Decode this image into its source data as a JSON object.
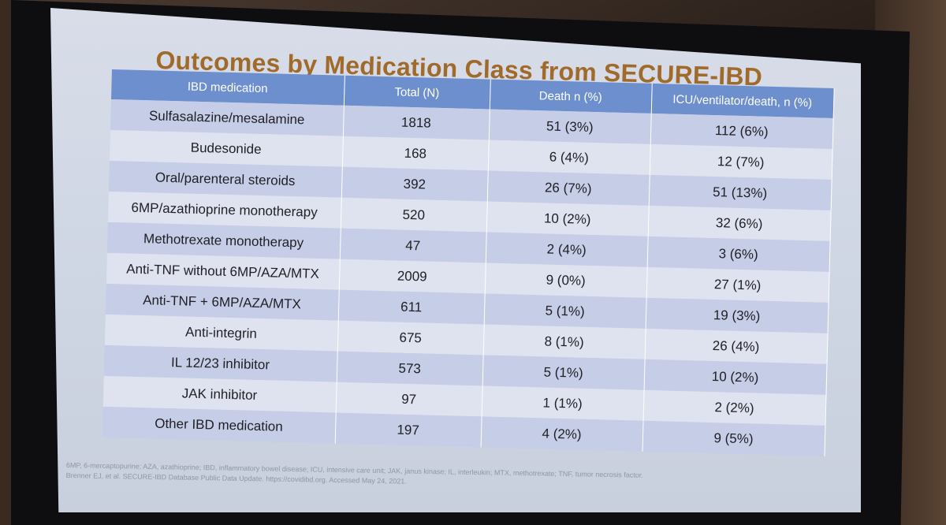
{
  "slide": {
    "title": "Outcomes by Medication Class from SECURE-IBD"
  },
  "table": {
    "headers": [
      "IBD medication",
      "Total (N)",
      "Death n (%)",
      "ICU/ventilator/death, n (%)"
    ],
    "rows": [
      {
        "medication": "Sulfasalazine/mesalamine",
        "total": "1818",
        "death": "51 (3%)",
        "icu": "112 (6%)"
      },
      {
        "medication": "Budesonide",
        "total": "168",
        "death": "6 (4%)",
        "icu": "12 (7%)"
      },
      {
        "medication": "Oral/parenteral steroids",
        "total": "392",
        "death": "26 (7%)",
        "icu": "51 (13%)"
      },
      {
        "medication": "6MP/azathioprine monotherapy",
        "total": "520",
        "death": "10 (2%)",
        "icu": "32 (6%)"
      },
      {
        "medication": "Methotrexate monotherapy",
        "total": "47",
        "death": "2 (4%)",
        "icu": "3 (6%)"
      },
      {
        "medication": "Anti-TNF without 6MP/AZA/MTX",
        "total": "2009",
        "death": "9 (0%)",
        "icu": "27 (1%)"
      },
      {
        "medication": "Anti-TNF + 6MP/AZA/MTX",
        "total": "611",
        "death": "5 (1%)",
        "icu": "19 (3%)"
      },
      {
        "medication": "Anti-integrin",
        "total": "675",
        "death": "8 (1%)",
        "icu": "26 (4%)"
      },
      {
        "medication": "IL 12/23 inhibitor",
        "total": "573",
        "death": "5 (1%)",
        "icu": "10 (2%)"
      },
      {
        "medication": "JAK inhibitor",
        "total": "97",
        "death": "1 (1%)",
        "icu": "2 (2%)"
      },
      {
        "medication": "Other IBD medication",
        "total": "197",
        "death": "4 (2%)",
        "icu": "9 (5%)"
      }
    ]
  },
  "footnote": {
    "abbreviations": "6MP, 6-mercaptopurine; AZA, azathioprine; IBD, inflammatory bowel disease; ICU, intensive care unit; JAK, janus kinase; IL, interleukin; MTX, methotrexate; TNF, tumor necrosis factor.",
    "reference": "Brenner EJ, et al. SECURE-IBD Database Public Data Update. https://covidibd.org. Accessed May 24, 2021."
  },
  "colors": {
    "title": "#a06a2a",
    "header_bg": "#6d8fce",
    "row_dark": "#c6cde6",
    "row_light": "#dfe3f0"
  }
}
